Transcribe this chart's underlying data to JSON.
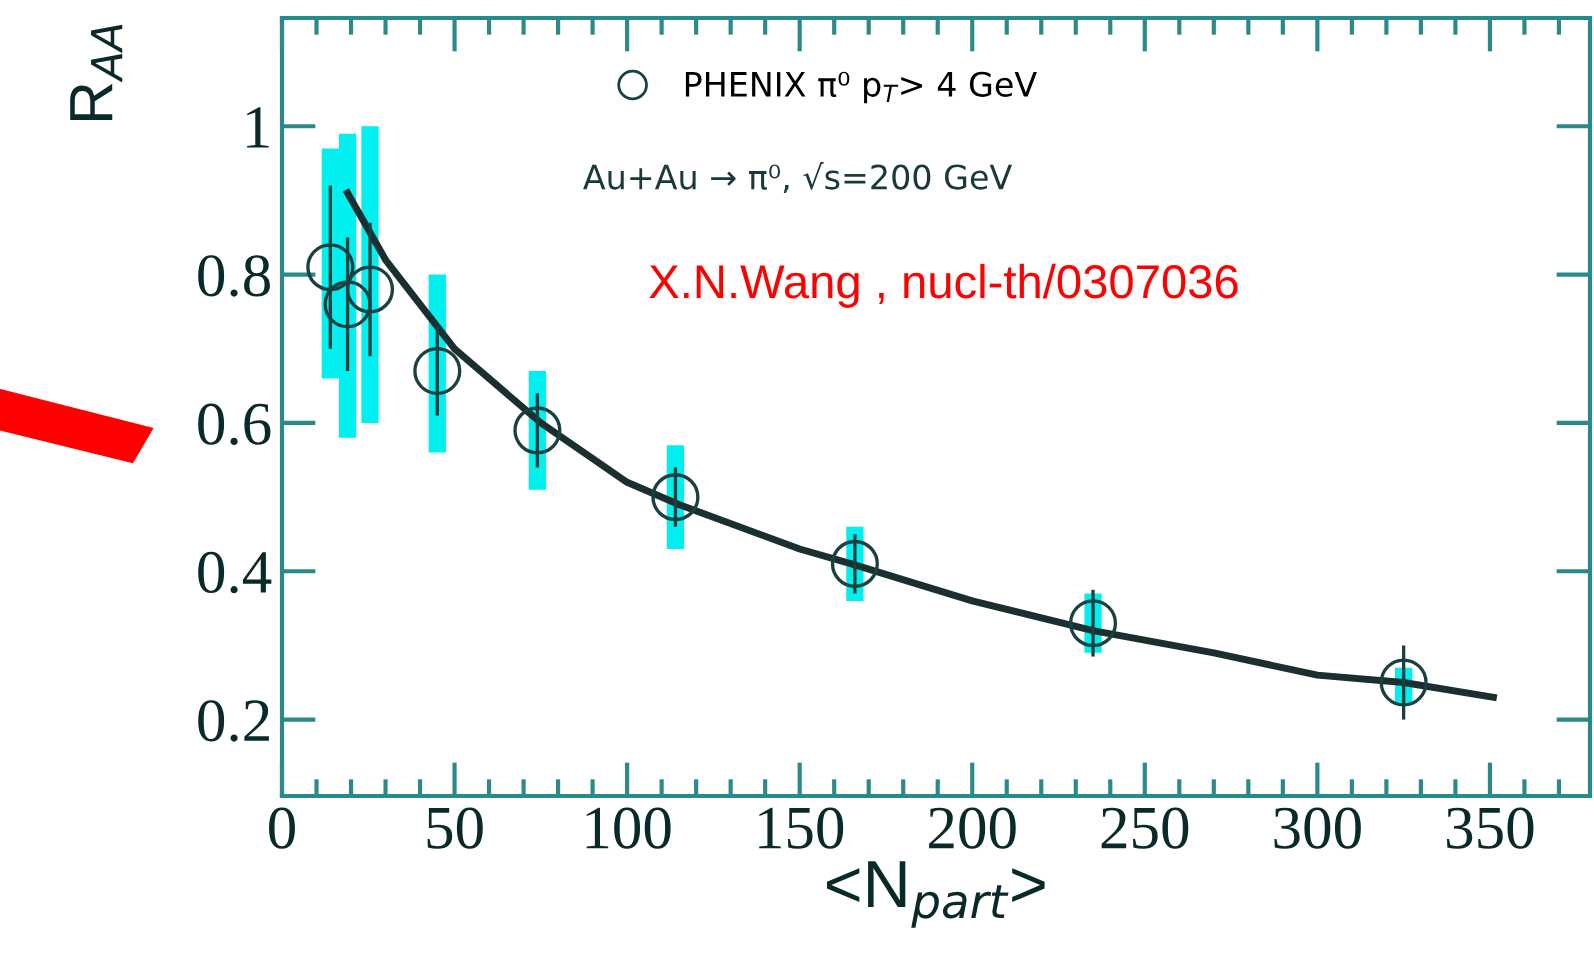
{
  "chart_data": {
    "type": "scatter",
    "xlabel": "<N$_{part}$>",
    "ylabel": "R$_{AA}$",
    "xlim": [
      0,
      379
    ],
    "ylim": [
      0.097,
      1.146
    ],
    "xticks": [
      0,
      50,
      100,
      150,
      200,
      250,
      300,
      350
    ],
    "yticks": [
      0.2,
      0.4,
      0.6,
      0.8,
      1
    ],
    "legend": "top",
    "marker": "circle",
    "annotations": [
      "Au+Au → π⁰, √s=200 GeV",
      "X.N.Wang , nucl-th/0307036"
    ],
    "series": [
      {
        "type": "bar",
        "color": "#00f0f0",
        "x": [
          14,
          19,
          25.5,
          45,
          74,
          114,
          166,
          235,
          325
        ],
        "base": [
          0.66,
          0.58,
          0.6,
          0.56,
          0.51,
          0.43,
          0.36,
          0.29,
          0.22
        ],
        "values": [
          0.31,
          0.41,
          0.4,
          0.24,
          0.16,
          0.14,
          0.1,
          0.08,
          0.05
        ]
      },
      {
        "type": "line",
        "color": "#1a3030",
        "marker": "none",
        "x": [
          19,
          30,
          50,
          75,
          100,
          115,
          150,
          165,
          200,
          235,
          270,
          300,
          325,
          351
        ],
        "values": [
          0.91,
          0.82,
          0.7,
          0.6,
          0.52,
          0.49,
          0.43,
          0.41,
          0.36,
          0.32,
          0.29,
          0.26,
          0.25,
          0.23
        ]
      },
      {
        "name": "PHENIX π⁰ p$_{T}$> 4 GeV",
        "color": "#1a4040",
        "x": [
          14,
          19,
          25.5,
          45,
          74,
          114,
          166,
          235,
          325
        ],
        "values": [
          0.81,
          0.76,
          0.78,
          0.67,
          0.59,
          0.5,
          0.41,
          0.33,
          0.25
        ],
        "errors": [
          0.11,
          0.09,
          0.09,
          0.06,
          0.05,
          0.04,
          0.04,
          0.045,
          0.05
        ]
      }
    ]
  }
}
